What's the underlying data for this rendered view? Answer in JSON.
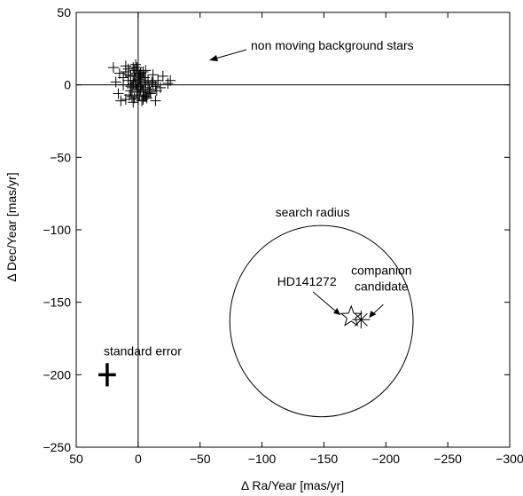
{
  "chart_data": {
    "type": "scatter",
    "title": "",
    "xlabel": "Δ Ra/Year [mas/yr]",
    "ylabel": "Δ Dec/Year [mas/yr]",
    "xlim": [
      50,
      -300
    ],
    "ylim": [
      -250,
      50
    ],
    "x_reversed": true,
    "grid": false,
    "xticks": [
      50,
      0,
      -50,
      -100,
      -150,
      -200,
      -250,
      -300
    ],
    "xtick_labels": [
      "50",
      "0",
      "−50",
      "−100",
      "−150",
      "−200",
      "−250",
      "−300"
    ],
    "yticks": [
      50,
      0,
      -50,
      -100,
      -150,
      -200,
      -250
    ],
    "ytick_labels": [
      "50",
      "0",
      "−50",
      "−100",
      "−150",
      "−200",
      "−250"
    ],
    "reference_lines": {
      "x": 0,
      "y": 0
    },
    "background_stars": {
      "marker": "plus",
      "x": [
        20,
        18,
        15,
        12,
        10,
        8,
        6,
        4,
        2,
        0,
        -2,
        -4,
        -6,
        -8,
        -10,
        -12,
        -14,
        -16,
        -18,
        -20,
        -24,
        -26,
        16,
        14,
        10,
        8,
        6,
        5,
        4,
        3,
        2,
        1,
        0,
        -1,
        -2,
        -3,
        -4,
        -5,
        -6,
        -7,
        -8,
        -10,
        -12,
        -15,
        8,
        5,
        3,
        1,
        -1,
        -3,
        -6,
        -9,
        12,
        7,
        4,
        2,
        0,
        -2,
        -4,
        -6,
        10,
        6,
        2,
        -2,
        -5,
        -8,
        -11,
        -14,
        6,
        3,
        0,
        -3,
        -6,
        4,
        1,
        -1,
        -4,
        2,
        -2,
        0
      ],
      "y": [
        12,
        2,
        8,
        0,
        -10,
        11,
        6,
        -12,
        14,
        4,
        -3,
        9,
        -8,
        1,
        -5,
        7,
        -11,
        3,
        -2,
        6,
        1,
        3,
        -6,
        -11,
        9,
        3,
        -1,
        -8,
        12,
        6,
        2,
        -5,
        10,
        -7,
        8,
        0,
        -4,
        5,
        -2,
        -9,
        3,
        -6,
        1,
        -4,
        7,
        -2,
        -9,
        12,
        4,
        -11,
        10,
        -3,
        5,
        -7,
        1,
        8,
        -2,
        6,
        -10,
        2,
        13,
        -4,
        3,
        -1,
        -8,
        -5,
        2,
        -1,
        0,
        10,
        -10,
        5,
        -7,
        3,
        -3,
        7,
        -5,
        1,
        0,
        -1
      ]
    },
    "hd_star": {
      "label": "HD141272",
      "x": -172,
      "y": -160,
      "marker": "star"
    },
    "companion": {
      "label_lines": [
        "companion",
        "candidate"
      ],
      "x": -180,
      "y": -162,
      "marker": "asterisk"
    },
    "search_circle": {
      "label": "search radius",
      "center": [
        -148,
        -163
      ],
      "radius_x": 74,
      "radius_y": 66
    },
    "standard_error": {
      "label": "standard error",
      "x": 25,
      "y": -200,
      "err_x": 7,
      "err_y": 8
    },
    "annotation_background": {
      "label": "non moving background stars"
    }
  }
}
